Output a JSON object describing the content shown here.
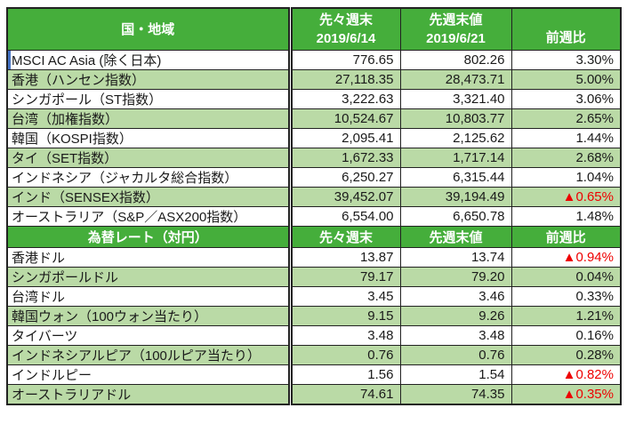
{
  "colors": {
    "header_green": "#45AE3B",
    "row_alt_green": "#BADAA6",
    "negative_red": "#EE0000",
    "border_black": "#222222",
    "selection_blue": "#4472C4",
    "header_text": "#FFFFFF"
  },
  "chart_data": [
    {
      "type": "table",
      "name": "asia-stock-indices",
      "header": {
        "col1": "国・地域",
        "col2_line1": "先々週末",
        "col2_line2": "2019/6/14",
        "col3_line1": "先週末値",
        "col3_line2": "2019/6/21",
        "col4": "前週比"
      },
      "rows": [
        {
          "label": "MSCI AC Asia (除く日本)",
          "week_before_last": "776.65",
          "last_week": "802.26",
          "change": "3.30%",
          "negative": false,
          "selected": true
        },
        {
          "label": "香港（ハンセン指数）",
          "week_before_last": "27,118.35",
          "last_week": "28,473.71",
          "change": "5.00%",
          "negative": false
        },
        {
          "label": "シンガポール（ST指数）",
          "week_before_last": "3,222.63",
          "last_week": "3,321.40",
          "change": "3.06%",
          "negative": false
        },
        {
          "label": "台湾（加権指数）",
          "week_before_last": "10,524.67",
          "last_week": "10,803.77",
          "change": "2.65%",
          "negative": false
        },
        {
          "label": "韓国（KOSPI指数）",
          "week_before_last": "2,095.41",
          "last_week": "2,125.62",
          "change": "1.44%",
          "negative": false
        },
        {
          "label": "タイ（SET指数）",
          "week_before_last": "1,672.33",
          "last_week": "1,717.14",
          "change": "2.68%",
          "negative": false
        },
        {
          "label": "インドネシア（ジャカルタ総合指数）",
          "week_before_last": "6,250.27",
          "last_week": "6,315.44",
          "change": "1.04%",
          "negative": false
        },
        {
          "label": "インド（SENSEX指数）",
          "week_before_last": "39,452.07",
          "last_week": "39,194.49",
          "change": "▲0.65%",
          "negative": true
        },
        {
          "label": "オーストラリア（S&P／ASX200指数）",
          "week_before_last": "6,554.00",
          "last_week": "6,650.78",
          "change": "1.48%",
          "negative": false
        }
      ]
    },
    {
      "type": "table",
      "name": "fx-rates-vs-yen",
      "header": {
        "col1": "為替レート（対円）",
        "col2": "先々週末",
        "col3": "先週末値",
        "col4": "前週比"
      },
      "rows": [
        {
          "label": "香港ドル",
          "week_before_last": "13.87",
          "last_week": "13.74",
          "change": "▲0.94%",
          "negative": true
        },
        {
          "label": "シンガポールドル",
          "week_before_last": "79.17",
          "last_week": "79.20",
          "change": "0.04%",
          "negative": false
        },
        {
          "label": "台湾ドル",
          "week_before_last": "3.45",
          "last_week": "3.46",
          "change": "0.33%",
          "negative": false
        },
        {
          "label": "韓国ウォン（100ウォン当たり）",
          "week_before_last": "9.15",
          "last_week": "9.26",
          "change": "1.21%",
          "negative": false
        },
        {
          "label": "タイバーツ",
          "week_before_last": "3.48",
          "last_week": "3.48",
          "change": "0.16%",
          "negative": false
        },
        {
          "label": "インドネシアルピア（100ルピア当たり）",
          "week_before_last": "0.76",
          "last_week": "0.76",
          "change": "0.28%",
          "negative": false
        },
        {
          "label": "インドルピー",
          "week_before_last": "1.56",
          "last_week": "1.54",
          "change": "▲0.82%",
          "negative": true
        },
        {
          "label": "オーストラリアドル",
          "week_before_last": "74.61",
          "last_week": "74.35",
          "change": "▲0.35%",
          "negative": true
        }
      ]
    }
  ]
}
